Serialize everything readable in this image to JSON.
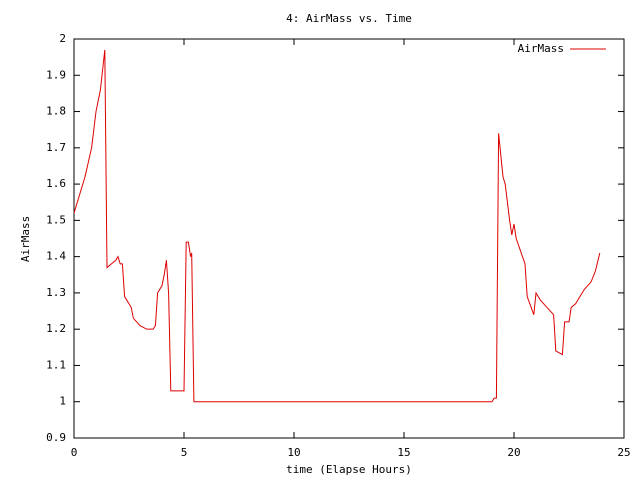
{
  "chart_data": {
    "type": "line",
    "title": "4: AirMass vs. Time",
    "x_label": "time (Elapse Hours)",
    "y_label": "AirMass",
    "x": [
      0,
      0.3,
      0.5,
      0.8,
      1.0,
      1.2,
      1.4,
      1.5,
      1.7,
      1.9,
      2.0,
      2.1,
      2.2,
      2.3,
      2.5,
      2.6,
      2.7,
      3.0,
      3.3,
      3.6,
      3.7,
      3.8,
      4.0,
      4.1,
      4.2,
      4.3,
      4.4,
      4.6,
      4.8,
      4.9,
      5.0,
      5.1,
      5.2,
      5.3,
      5.35,
      5.45,
      19.0,
      19.1,
      19.2,
      19.3,
      19.5,
      19.6,
      19.7,
      19.8,
      19.9,
      20.0,
      20.1,
      20.5,
      20.6,
      20.9,
      21.0,
      21.2,
      21.5,
      21.8,
      21.9,
      22.2,
      22.3,
      22.5,
      22.6,
      22.8,
      23.0,
      23.2,
      23.5,
      23.7,
      23.9
    ],
    "series": [
      {
        "name": "AirMass",
        "color": "#dd0000",
        "values": [
          1.52,
          1.58,
          1.62,
          1.7,
          1.8,
          1.86,
          1.97,
          1.37,
          1.38,
          1.39,
          1.4,
          1.38,
          1.38,
          1.29,
          1.27,
          1.26,
          1.23,
          1.21,
          1.2,
          1.2,
          1.21,
          1.3,
          1.32,
          1.35,
          1.39,
          1.3,
          1.03,
          1.03,
          1.03,
          1.03,
          1.03,
          1.44,
          1.44,
          1.4,
          1.41,
          1.0,
          1.0,
          1.01,
          1.01,
          1.74,
          1.62,
          1.6,
          1.55,
          1.5,
          1.46,
          1.49,
          1.45,
          1.38,
          1.29,
          1.24,
          1.3,
          1.28,
          1.26,
          1.24,
          1.14,
          1.13,
          1.22,
          1.22,
          1.26,
          1.27,
          1.29,
          1.31,
          1.33,
          1.36,
          1.41
        ]
      }
    ],
    "xlim": [
      0,
      25
    ],
    "xticks": [
      0,
      5,
      10,
      15,
      20,
      25
    ],
    "ylim": [
      0.9,
      2
    ],
    "yticks": [
      0.9,
      1,
      1.1,
      1.2,
      1.3,
      1.4,
      1.5,
      1.6,
      1.7,
      1.8,
      1.9,
      2
    ],
    "grid": false,
    "legend": "top right"
  }
}
